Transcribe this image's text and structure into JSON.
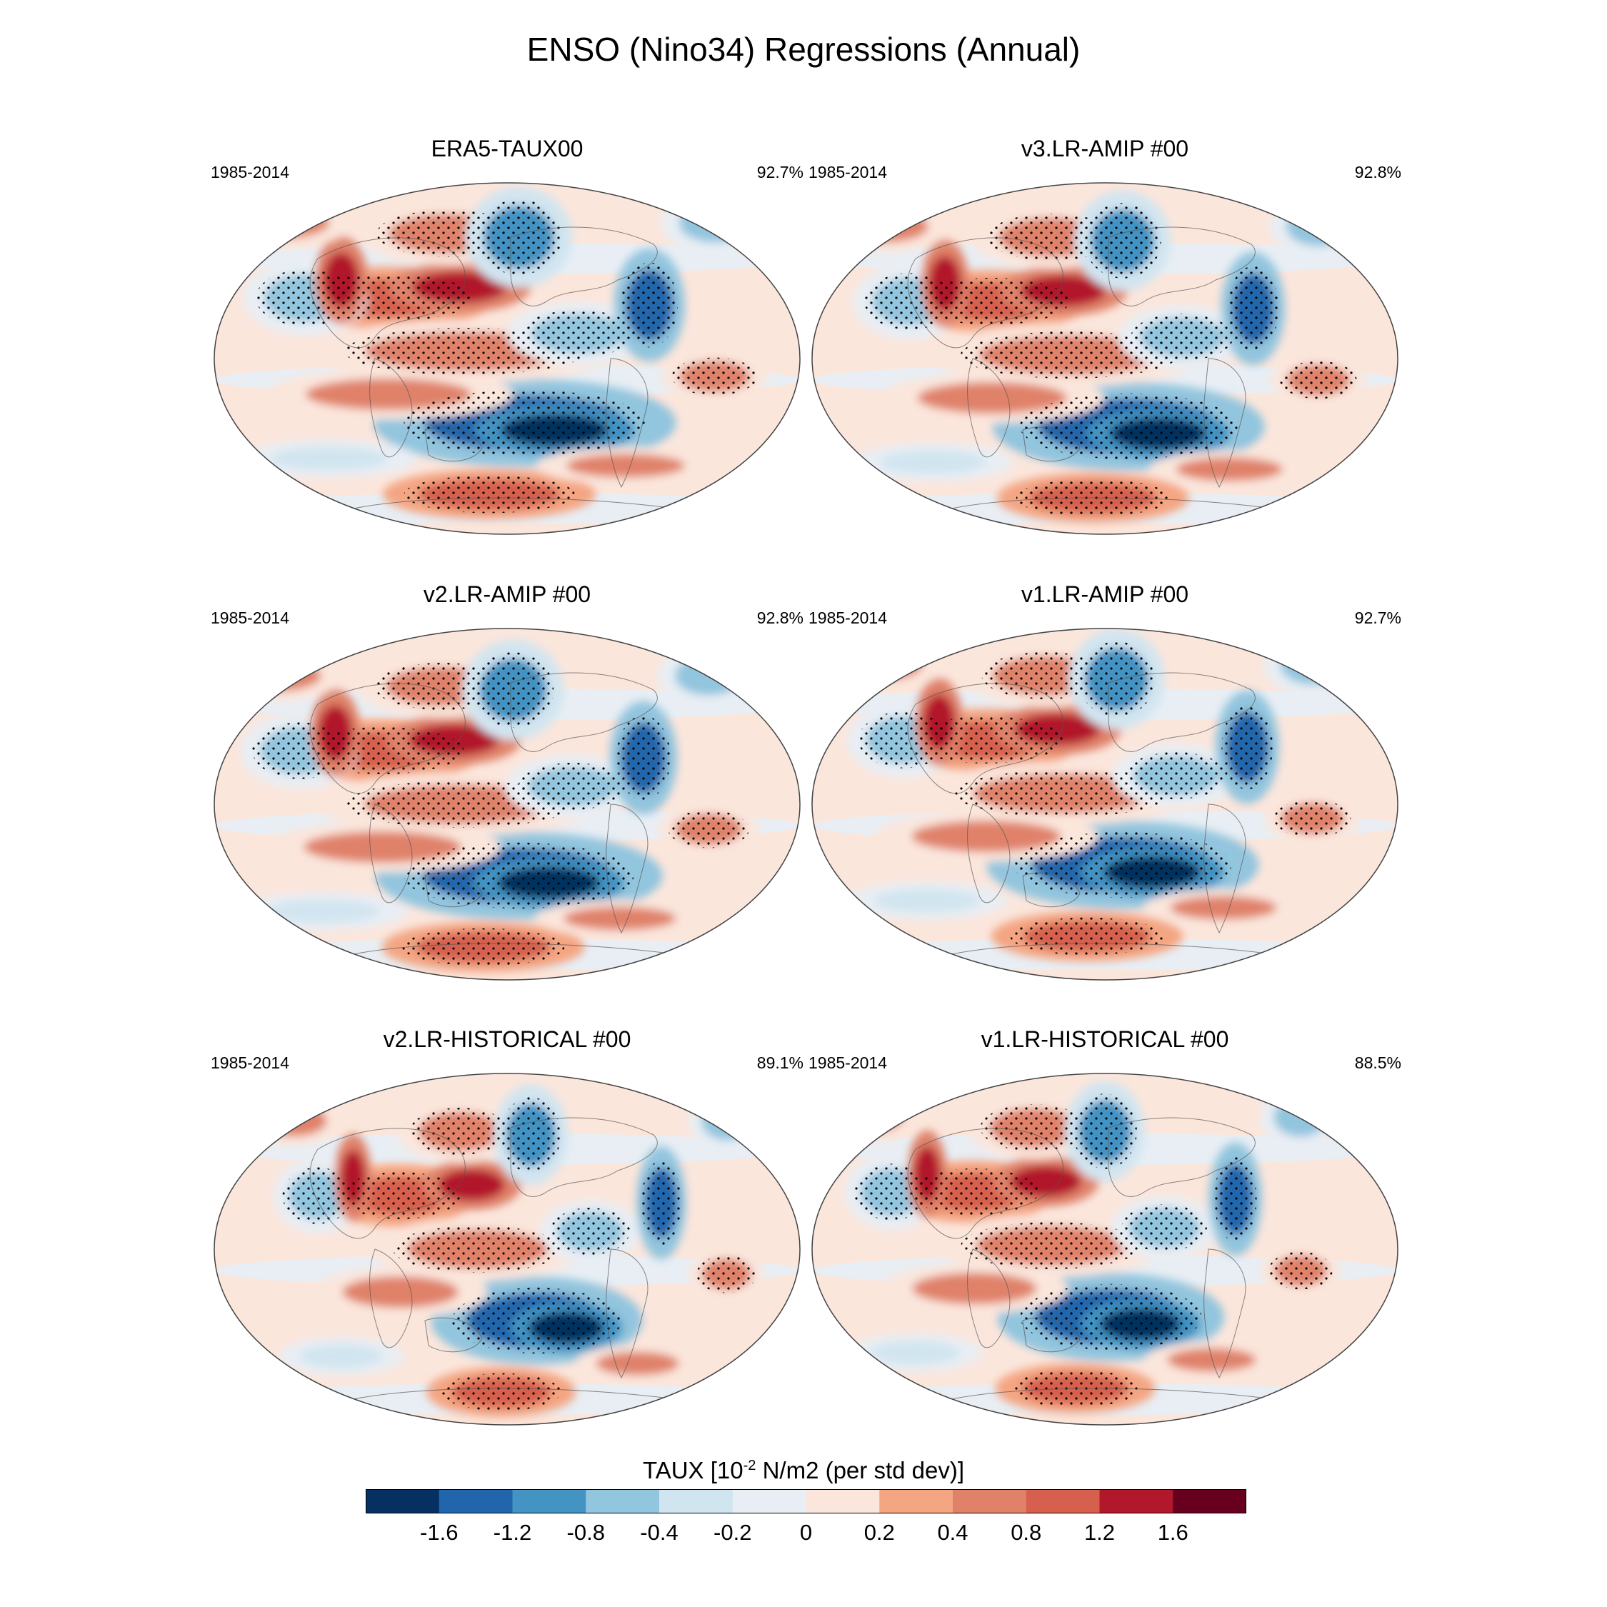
{
  "title": "ENSO (Nino34) Regressions (Annual)",
  "panels": [
    {
      "title": "ERA5-TAUX00",
      "period": "1985-2014",
      "pct": "92.7%"
    },
    {
      "title": "v3.LR-AMIP  #00",
      "period": "1985-2014",
      "pct": "92.8%"
    },
    {
      "title": "v2.LR-AMIP  #00",
      "period": "1985-2014",
      "pct": "92.8%"
    },
    {
      "title": "v1.LR-AMIP  #00",
      "period": "1985-2014",
      "pct": "92.7%"
    },
    {
      "title": "v2.LR-HISTORICAL  #00",
      "period": "1985-2014",
      "pct": "89.1%"
    },
    {
      "title": "v1.LR-HISTORICAL  #00",
      "period": "1985-2014",
      "pct": "88.5%"
    }
  ],
  "colorbar": {
    "title_prefix": "TAUX [10",
    "title_exponent": "-2",
    "title_suffix": " N/m2 (per std dev)]",
    "labels": [
      "-1.6",
      "-1.2",
      "-0.8",
      "-0.4",
      "-0.2",
      "0",
      "0.2",
      "0.4",
      "0.8",
      "1.2",
      "1.6"
    ],
    "colors": [
      "#053061",
      "#2166ac",
      "#4393c3",
      "#92c5de",
      "#d1e5f0",
      "#e8eef4",
      "#fbe6dc",
      "#f4a582",
      "#e0826a",
      "#d6604d",
      "#b2182b",
      "#67001f"
    ]
  }
}
